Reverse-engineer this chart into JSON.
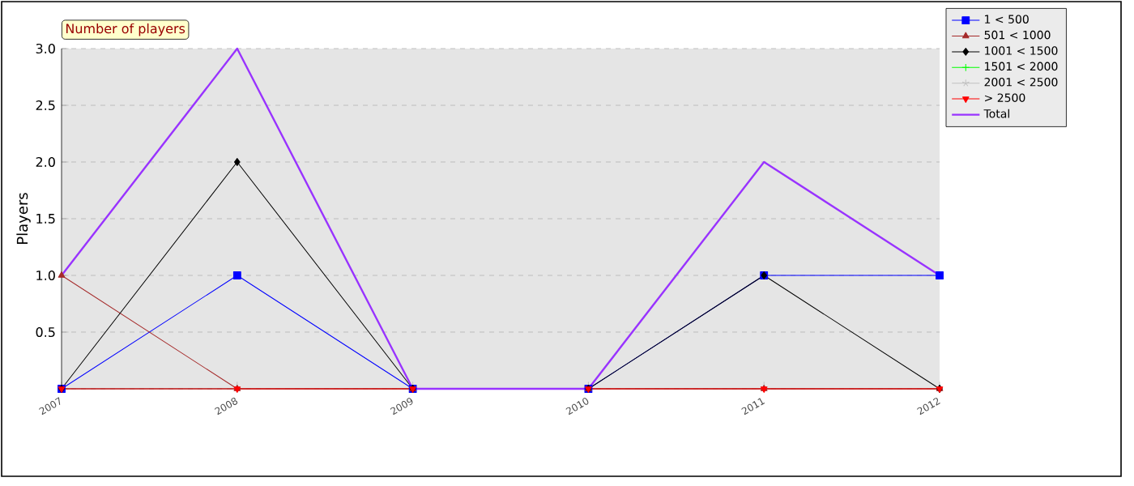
{
  "chart_data": {
    "type": "line",
    "title": "Number of players",
    "ylabel": "Players",
    "categories": [
      "2007",
      "2008",
      "2009",
      "2010",
      "2011",
      "2012"
    ],
    "series": [
      {
        "name": "1 < 500",
        "color": "#0000ff",
        "marker": "square",
        "values": [
          0,
          1,
          0,
          0,
          1,
          1
        ]
      },
      {
        "name": "501 < 1000",
        "color": "#a52a2a",
        "marker": "triangle",
        "values": [
          1,
          0,
          0,
          0,
          0,
          0
        ]
      },
      {
        "name": "1001 < 1500",
        "color": "#000000",
        "marker": "diamond",
        "values": [
          0,
          2,
          0,
          0,
          1,
          0
        ]
      },
      {
        "name": "1501 < 2000",
        "color": "#00ff00",
        "marker": "cross",
        "values": [
          null,
          null,
          null,
          null,
          null,
          null
        ]
      },
      {
        "name": "2001 < 2500",
        "color": "#c0c0c0",
        "marker": "star",
        "values": [
          null,
          null,
          null,
          null,
          null,
          null
        ]
      },
      {
        "name": "> 2500",
        "color": "#ff0000",
        "marker": "triangle-down",
        "values": [
          0,
          0,
          0,
          0,
          0,
          0
        ]
      },
      {
        "name": "Total",
        "color": "#9933ff",
        "marker": "none",
        "values": [
          1,
          3,
          0,
          0,
          2,
          1
        ]
      }
    ],
    "ylim": [
      0,
      3
    ],
    "yticks": [
      {
        "value": 0,
        "label": null
      },
      0.5,
      {
        "value": 1,
        "label": "1.0"
      },
      1.5,
      {
        "value": 2,
        "label": "2.0"
      },
      2.5,
      {
        "value": 3,
        "label": "3.0"
      }
    ],
    "grid": "y",
    "legend": "top right",
    "line_style": "solid"
  }
}
